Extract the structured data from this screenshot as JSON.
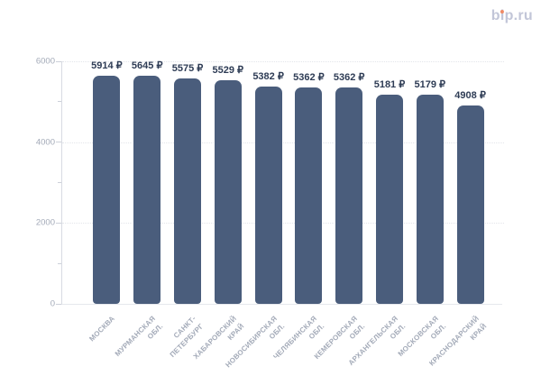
{
  "logo": {
    "text": "bip.ru",
    "parts": [
      "b",
      "i",
      "p.ru"
    ],
    "text_color": "#c2c6d8",
    "dot_color": "#f08a65"
  },
  "chart_data": {
    "type": "bar",
    "title": "",
    "categories": [
      "МОСКВА",
      "МУРМАНСКАЯ\nОБЛ.",
      "САНКТ-\nПЕТЕРБУРГ",
      "ХАБАРОВСКИЙ\nКРАЙ",
      "НОВОСИБИРСКАЯ\nОБЛ.",
      "ЧЕЛЯБИНСКАЯ\nОБЛ.",
      "КЕМЕРОВСКАЯ\nОБЛ.",
      "АРХАНГЕЛЬСКАЯ\nОБЛ.",
      "МОСКОВСКАЯ\nОБЛ.",
      "КРАСНОДАРСКИЙ\nКРАЙ"
    ],
    "values": [
      5914,
      5645,
      5575,
      5529,
      5382,
      5362,
      5362,
      5181,
      5179,
      4908
    ],
    "value_suffix": "₽",
    "xlabel": "",
    "ylabel": "",
    "ylim": [
      0,
      6000
    ],
    "yticks": [
      0,
      2000,
      4000,
      6000
    ],
    "ytick_minor_step": 1000,
    "grid": "dotted horizontal at major ticks",
    "legend": "none",
    "bar_color": "#4a5d7c",
    "value_label_color": "#2e3c55",
    "axis_label_color": "#a3aab8"
  }
}
